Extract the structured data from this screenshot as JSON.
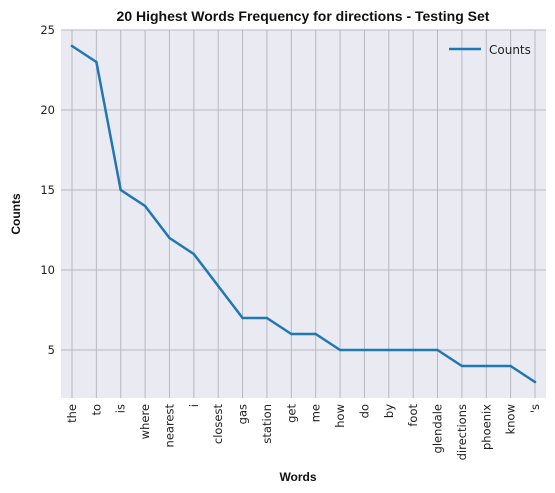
{
  "chart_data": {
    "type": "line",
    "title": "20 Highest Words Frequency for directions - Testing Set",
    "xlabel": "Words",
    "ylabel": "Counts",
    "ylim": [
      2,
      25
    ],
    "yticks": [
      5,
      10,
      15,
      20,
      25
    ],
    "grid": true,
    "legend_position": "top-right",
    "categories": [
      "the",
      "to",
      "is",
      "where",
      "nearest",
      "i",
      "closest",
      "gas",
      "station",
      "get",
      "me",
      "how",
      "do",
      "by",
      "foot",
      "glendale",
      "directions",
      "phoenix",
      "know",
      "'s"
    ],
    "series": [
      {
        "name": "Counts",
        "color": "#1f77b4",
        "values": [
          24,
          23,
          15,
          14,
          12,
          11,
          9,
          7,
          7,
          6,
          6,
          5,
          5,
          5,
          5,
          5,
          4,
          4,
          4,
          3
        ]
      }
    ]
  },
  "colors": {
    "plot_background": "#eaeaf2",
    "grid": "#b8b8c0"
  }
}
